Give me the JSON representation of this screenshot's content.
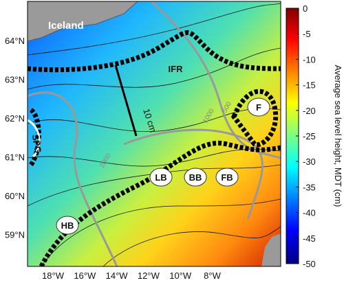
{
  "map": {
    "lat_labels": [
      "64°N",
      "63°N",
      "62°N",
      "61°N",
      "60°N",
      "59°N"
    ],
    "lon_labels": [
      "18°W",
      "16°W",
      "14°W",
      "12°W",
      "10°W",
      "8°W"
    ],
    "land_label": "Iceland",
    "region_labels": [
      "IFR",
      "SPG",
      "F",
      "LB",
      "BB",
      "FB",
      "HB"
    ],
    "contour_labels": [
      "1000",
      "500",
      "2000"
    ],
    "scale_label": "10 cm"
  },
  "colorbar": {
    "label": "Average sea level height, MDT (cm)",
    "lim": [
      -50,
      0
    ],
    "ticks": [
      0,
      -5,
      -10,
      -15,
      -20,
      -25,
      -30,
      -35,
      -40,
      -45,
      -50
    ]
  }
}
